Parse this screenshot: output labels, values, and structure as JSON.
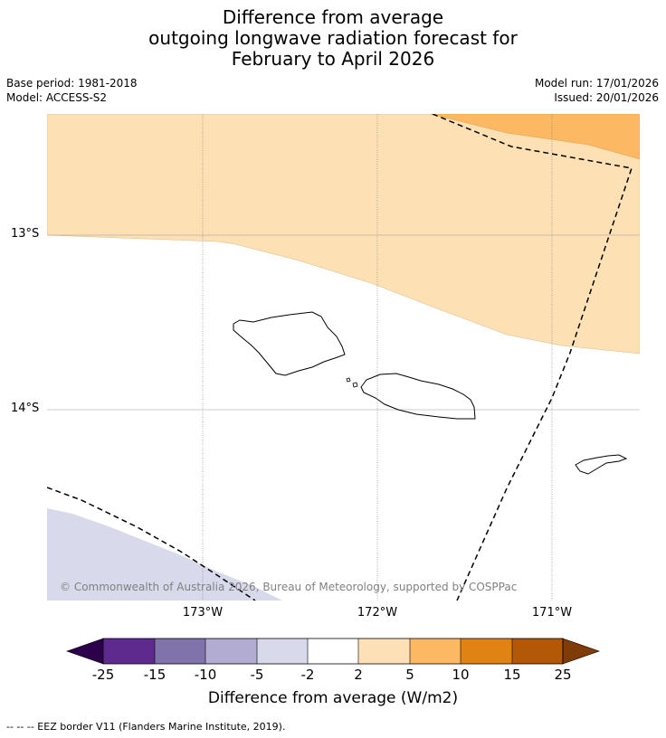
{
  "title": {
    "line1": "Difference from average",
    "line2": "outgoing longwave radiation forecast for",
    "line3": "February to April 2026"
  },
  "meta": {
    "base_period": "Base period: 1981-2018",
    "model": "Model: ACCESS-S2",
    "model_run": "Model run: 17/01/2026",
    "issued": "Issued: 20/01/2026"
  },
  "map": {
    "lat_labels": [
      "13°S",
      "14°S"
    ],
    "lon_labels": [
      "173°W",
      "172°W",
      "171°W"
    ],
    "copyright": "© Commonwealth of Australia 2026, Bureau of Meteorology, supported by COSPPac",
    "colors": {
      "band_2_5": "#fde0b4",
      "band_5_10": "#fdb863",
      "band_neg5_neg2": "#d8daeb",
      "eez_line": "#000000",
      "gridline": "#888888"
    }
  },
  "colorbar": {
    "ticks": [
      "-25",
      "-15",
      "-10",
      "-5",
      "-2",
      "2",
      "5",
      "10",
      "15",
      "25"
    ],
    "colors": [
      "#2d004b",
      "#5e2a8e",
      "#8073ac",
      "#b2abd2",
      "#d8daeb",
      "#ffffff",
      "#fee0b6",
      "#fdb863",
      "#e08214",
      "#b35806",
      "#7f3b08"
    ],
    "label": "Difference from average (W/m2)"
  },
  "legend_note": "--  --  -- EEZ border V11 (Flanders Marine Institute, 2019)."
}
